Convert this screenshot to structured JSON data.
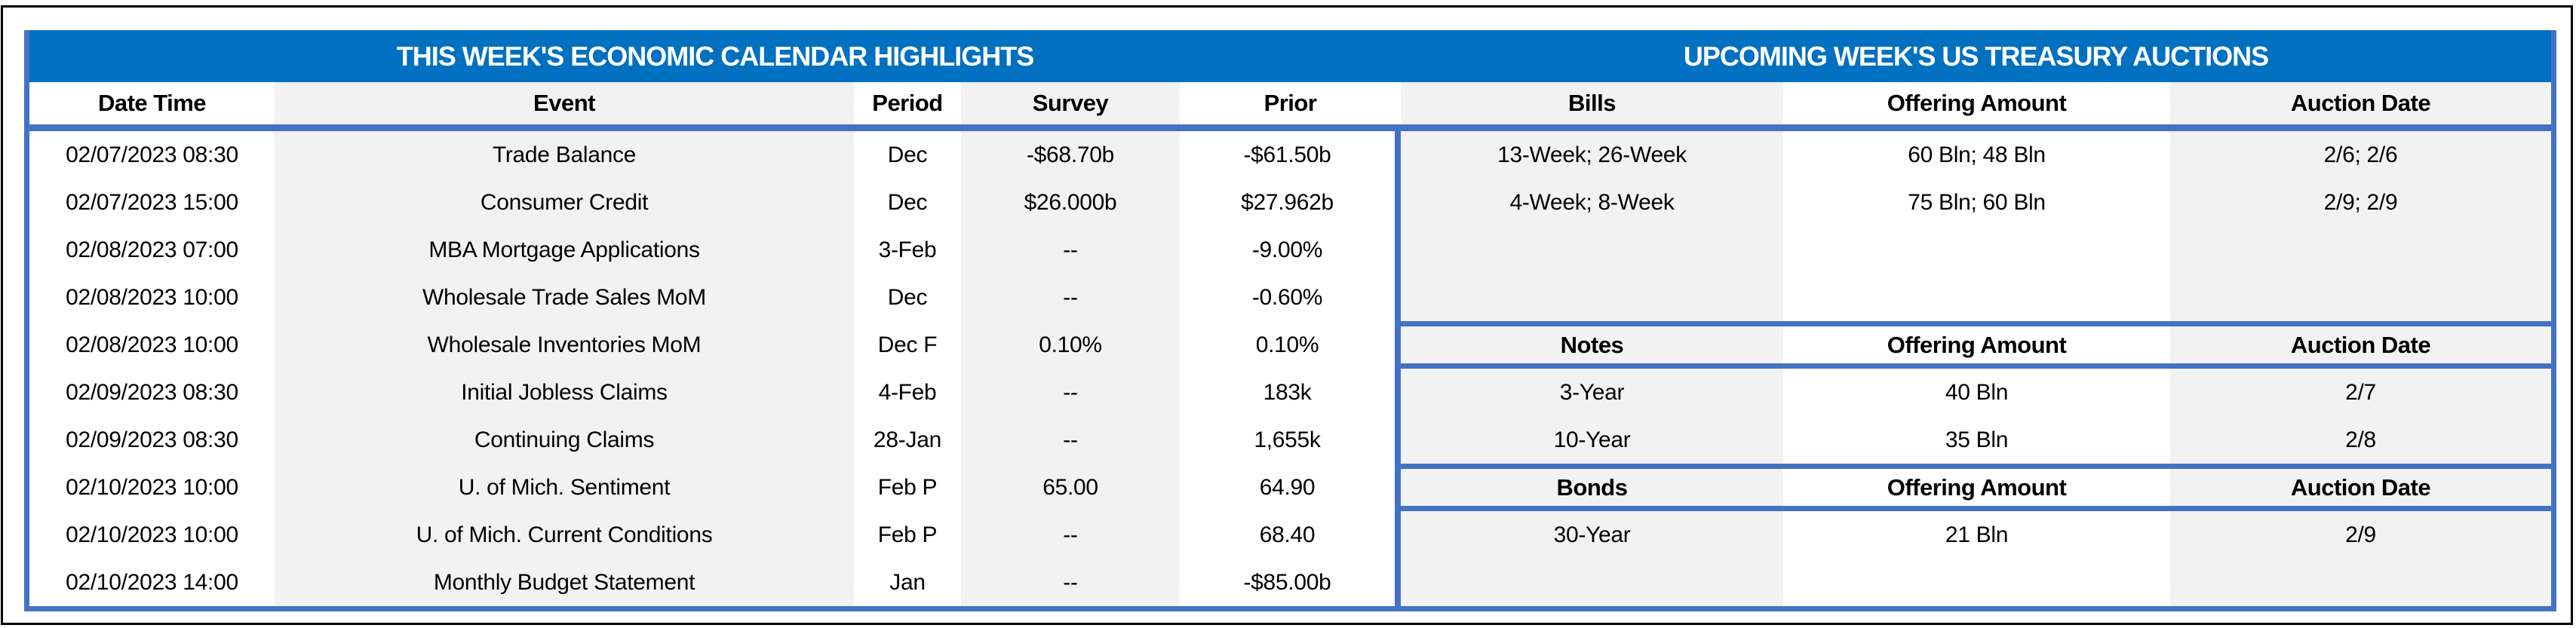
{
  "page": {
    "kind": "weekly-economic-calendar-and-treasury-auctions-table"
  },
  "colors": {
    "title_band_blue": "#0070C0",
    "border_blue": "#4472C4",
    "shaded_cell_gray": "#F2F2F2",
    "title_text": "#FFFFFF",
    "body_text": "#000000",
    "outer_frame": "#000000"
  },
  "left_section": {
    "title": "THIS WEEK'S ECONOMIC CALENDAR HIGHLIGHTS",
    "columns": [
      "Date Time",
      "Event",
      "Period",
      "Survey",
      "Prior"
    ],
    "rows": [
      [
        "02/07/2023 08:30",
        "Trade Balance",
        "Dec",
        "-$68.70b",
        "-$61.50b"
      ],
      [
        "02/07/2023 15:00",
        "Consumer Credit",
        "Dec",
        "$26.000b",
        "$27.962b"
      ],
      [
        "02/08/2023 07:00",
        "MBA Mortgage Applications",
        "3-Feb",
        "--",
        "-9.00%"
      ],
      [
        "02/08/2023 10:00",
        "Wholesale Trade Sales MoM",
        "Dec",
        "--",
        "-0.60%"
      ],
      [
        "02/08/2023 10:00",
        "Wholesale Inventories MoM",
        "Dec F",
        "0.10%",
        "0.10%"
      ],
      [
        "02/09/2023 08:30",
        "Initial Jobless Claims",
        "4-Feb",
        "--",
        "183k"
      ],
      [
        "02/09/2023 08:30",
        "Continuing Claims",
        "28-Jan",
        "--",
        "1,655k"
      ],
      [
        "02/10/2023 10:00",
        "U. of Mich. Sentiment",
        "Feb P",
        "65.00",
        "64.90"
      ],
      [
        "02/10/2023 10:00",
        "U. of Mich. Current Conditions",
        "Feb P",
        "--",
        "68.40"
      ],
      [
        "02/10/2023 14:00",
        "Monthly Budget Statement",
        "Jan",
        "--",
        "-$85.00b"
      ]
    ]
  },
  "right_section": {
    "title": "UPCOMING WEEK'S US TREASURY AUCTIONS",
    "groups": [
      {
        "name": "Bills",
        "columns": [
          "Bills",
          "Offering Amount",
          "Auction Date"
        ],
        "rows": [
          [
            "13-Week; 26-Week",
            "60 Bln; 48 Bln",
            "2/6; 2/6"
          ],
          [
            "4-Week; 8-Week",
            "75 Bln; 60 Bln",
            "2/9; 2/9"
          ]
        ],
        "empty_rows_after": 2
      },
      {
        "name": "Notes",
        "columns": [
          "Notes",
          "Offering Amount",
          "Auction Date"
        ],
        "rows": [
          [
            "3-Year",
            "40 Bln",
            "2/7"
          ],
          [
            "10-Year",
            "35 Bln",
            "2/8"
          ]
        ],
        "empty_rows_after": 0
      },
      {
        "name": "Bonds",
        "columns": [
          "Bonds",
          "Offering Amount",
          "Auction Date"
        ],
        "rows": [
          [
            "30-Year",
            "21 Bln",
            "2/9"
          ]
        ],
        "empty_rows_after": 1
      }
    ]
  }
}
